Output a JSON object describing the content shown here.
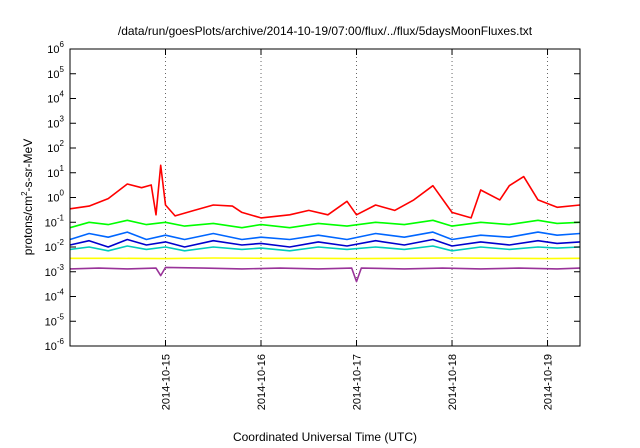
{
  "chart_data": {
    "type": "line",
    "title": "/data/run/goesPlots/archive/2014-10-19/07:00/flux/../flux/5daysMoonFluxes.txt",
    "xlabel": "Coordinated Universal Time (UTC)",
    "ylabel_parts": [
      "protons/cm",
      "2",
      "-s-sr-MeV"
    ],
    "yscale": "log",
    "ylim": [
      1e-06,
      1000000.0
    ],
    "xlim": [
      14.0,
      19.34
    ],
    "x_ticks": [
      15,
      16,
      17,
      18,
      19
    ],
    "x_tick_labels": [
      "2014-10-15",
      "2014-10-16",
      "2014-10-17",
      "2014-10-18",
      "2014-10-19"
    ],
    "y_tick_base": "10",
    "y_tick_exponents": [
      "-6",
      "-5",
      "-4",
      "-3",
      "-2",
      "-1",
      "0",
      "1",
      "2",
      "3",
      "4",
      "5",
      "6"
    ],
    "grid": "vertical dotted lines at day boundaries",
    "legend": "none",
    "series": [
      {
        "color": "#ff0000",
        "points": [
          [
            14.0,
            0.35
          ],
          [
            14.2,
            0.45
          ],
          [
            14.4,
            0.9
          ],
          [
            14.6,
            3.5
          ],
          [
            14.75,
            2.5
          ],
          [
            14.85,
            3.2
          ],
          [
            14.9,
            0.2
          ],
          [
            14.95,
            20
          ],
          [
            15.0,
            0.5
          ],
          [
            15.1,
            0.18
          ],
          [
            15.3,
            0.3
          ],
          [
            15.5,
            0.5
          ],
          [
            15.7,
            0.45
          ],
          [
            15.8,
            0.25
          ],
          [
            16.0,
            0.15
          ],
          [
            16.3,
            0.2
          ],
          [
            16.5,
            0.3
          ],
          [
            16.7,
            0.2
          ],
          [
            16.9,
            0.7
          ],
          [
            17.0,
            0.2
          ],
          [
            17.2,
            0.5
          ],
          [
            17.4,
            0.3
          ],
          [
            17.6,
            0.8
          ],
          [
            17.8,
            3.0
          ],
          [
            18.0,
            0.25
          ],
          [
            18.2,
            0.15
          ],
          [
            18.3,
            2.0
          ],
          [
            18.5,
            0.8
          ],
          [
            18.6,
            3.0
          ],
          [
            18.75,
            7.0
          ],
          [
            18.9,
            0.8
          ],
          [
            19.1,
            0.4
          ],
          [
            19.34,
            0.5
          ]
        ]
      },
      {
        "color": "#00ff00",
        "points": [
          [
            14.0,
            0.06
          ],
          [
            14.2,
            0.1
          ],
          [
            14.4,
            0.08
          ],
          [
            14.6,
            0.12
          ],
          [
            14.8,
            0.08
          ],
          [
            15.0,
            0.1
          ],
          [
            15.2,
            0.07
          ],
          [
            15.5,
            0.09
          ],
          [
            15.8,
            0.06
          ],
          [
            16.0,
            0.08
          ],
          [
            16.3,
            0.06
          ],
          [
            16.6,
            0.09
          ],
          [
            16.9,
            0.07
          ],
          [
            17.2,
            0.1
          ],
          [
            17.5,
            0.08
          ],
          [
            17.8,
            0.12
          ],
          [
            18.0,
            0.07
          ],
          [
            18.3,
            0.1
          ],
          [
            18.6,
            0.08
          ],
          [
            18.9,
            0.12
          ],
          [
            19.1,
            0.09
          ],
          [
            19.34,
            0.1
          ]
        ]
      },
      {
        "color": "#0066ff",
        "points": [
          [
            14.0,
            0.02
          ],
          [
            14.2,
            0.035
          ],
          [
            14.4,
            0.025
          ],
          [
            14.6,
            0.04
          ],
          [
            14.8,
            0.02
          ],
          [
            15.0,
            0.03
          ],
          [
            15.2,
            0.02
          ],
          [
            15.5,
            0.035
          ],
          [
            15.8,
            0.02
          ],
          [
            16.0,
            0.025
          ],
          [
            16.3,
            0.02
          ],
          [
            16.6,
            0.03
          ],
          [
            16.9,
            0.02
          ],
          [
            17.2,
            0.035
          ],
          [
            17.5,
            0.025
          ],
          [
            17.8,
            0.04
          ],
          [
            18.0,
            0.02
          ],
          [
            18.3,
            0.03
          ],
          [
            18.6,
            0.025
          ],
          [
            18.9,
            0.04
          ],
          [
            19.1,
            0.03
          ],
          [
            19.34,
            0.035
          ]
        ]
      },
      {
        "color": "#0000cc",
        "points": [
          [
            14.0,
            0.012
          ],
          [
            14.2,
            0.018
          ],
          [
            14.4,
            0.01
          ],
          [
            14.6,
            0.02
          ],
          [
            14.8,
            0.012
          ],
          [
            15.0,
            0.016
          ],
          [
            15.2,
            0.01
          ],
          [
            15.5,
            0.018
          ],
          [
            15.8,
            0.012
          ],
          [
            16.0,
            0.014
          ],
          [
            16.3,
            0.01
          ],
          [
            16.6,
            0.016
          ],
          [
            16.9,
            0.011
          ],
          [
            17.2,
            0.018
          ],
          [
            17.5,
            0.012
          ],
          [
            17.8,
            0.02
          ],
          [
            18.0,
            0.011
          ],
          [
            18.3,
            0.016
          ],
          [
            18.6,
            0.012
          ],
          [
            18.9,
            0.018
          ],
          [
            19.1,
            0.014
          ],
          [
            19.34,
            0.016
          ]
        ]
      },
      {
        "color": "#00ccbb",
        "points": [
          [
            14.0,
            0.008
          ],
          [
            14.2,
            0.01
          ],
          [
            14.4,
            0.007
          ],
          [
            14.6,
            0.011
          ],
          [
            14.8,
            0.008
          ],
          [
            15.0,
            0.01
          ],
          [
            15.2,
            0.007
          ],
          [
            15.5,
            0.01
          ],
          [
            15.8,
            0.008
          ],
          [
            16.0,
            0.009
          ],
          [
            16.3,
            0.007
          ],
          [
            16.6,
            0.01
          ],
          [
            16.9,
            0.008
          ],
          [
            17.2,
            0.01
          ],
          [
            17.5,
            0.008
          ],
          [
            17.8,
            0.011
          ],
          [
            18.0,
            0.007
          ],
          [
            18.3,
            0.01
          ],
          [
            18.6,
            0.008
          ],
          [
            18.9,
            0.01
          ],
          [
            19.1,
            0.009
          ],
          [
            19.34,
            0.01
          ]
        ]
      },
      {
        "color": "#ffff00",
        "points": [
          [
            14.0,
            0.0035
          ],
          [
            14.5,
            0.0035
          ],
          [
            15.0,
            0.0034
          ],
          [
            15.5,
            0.0036
          ],
          [
            16.0,
            0.0035
          ],
          [
            16.5,
            0.0035
          ],
          [
            17.0,
            0.0034
          ],
          [
            17.5,
            0.0035
          ],
          [
            18.0,
            0.0036
          ],
          [
            18.5,
            0.0035
          ],
          [
            19.0,
            0.0034
          ],
          [
            19.34,
            0.0035
          ]
        ]
      },
      {
        "color": "#993399",
        "points": [
          [
            14.0,
            0.0013
          ],
          [
            14.3,
            0.0014
          ],
          [
            14.6,
            0.0013
          ],
          [
            14.9,
            0.0014
          ],
          [
            14.95,
            0.0007
          ],
          [
            15.0,
            0.0015
          ],
          [
            15.4,
            0.0014
          ],
          [
            15.8,
            0.0013
          ],
          [
            16.2,
            0.0014
          ],
          [
            16.6,
            0.0013
          ],
          [
            16.95,
            0.0014
          ],
          [
            17.0,
            0.0004
          ],
          [
            17.05,
            0.0014
          ],
          [
            17.5,
            0.0013
          ],
          [
            17.9,
            0.0014
          ],
          [
            18.3,
            0.0013
          ],
          [
            18.7,
            0.0014
          ],
          [
            19.1,
            0.0013
          ],
          [
            19.34,
            0.0014
          ]
        ]
      }
    ]
  }
}
